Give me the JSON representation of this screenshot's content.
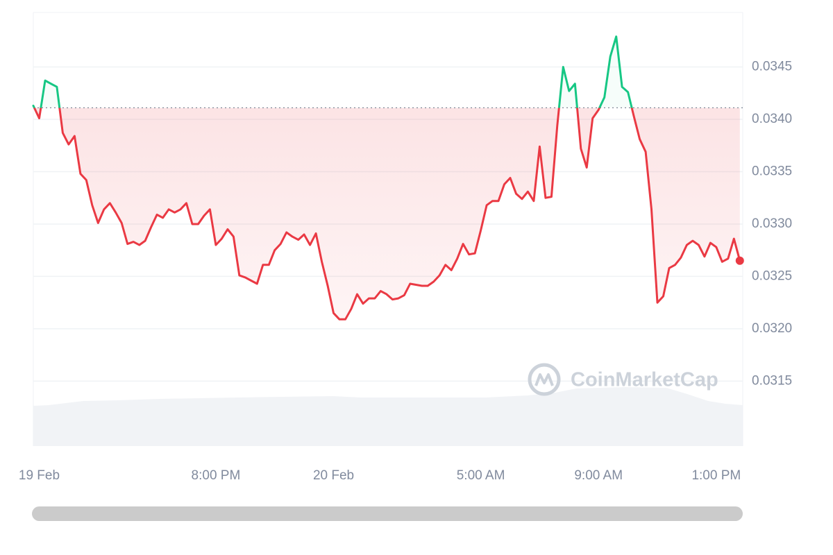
{
  "chart_data": {
    "type": "line",
    "watermark": "CoinMarketCap",
    "x": [
      13.8,
      14,
      14.2,
      14.4,
      14.6,
      14.8,
      15,
      15.2,
      15.4,
      15.6,
      15.8,
      16,
      16.2,
      16.4,
      16.6,
      16.8,
      17,
      17.2,
      17.4,
      17.6,
      17.8,
      18,
      18.2,
      18.4,
      18.6,
      18.8,
      19,
      19.2,
      19.4,
      19.6,
      19.8,
      20,
      20.2,
      20.4,
      20.6,
      20.8,
      21,
      21.2,
      21.4,
      21.6,
      21.8,
      22,
      22.2,
      22.4,
      22.6,
      22.8,
      23,
      23.2,
      23.4,
      23.6,
      23.8,
      24,
      24.2,
      24.4,
      24.6,
      24.8,
      25,
      25.2,
      25.4,
      25.6,
      25.8,
      26,
      26.2,
      26.4,
      26.6,
      26.8,
      27,
      27.2,
      27.4,
      27.6,
      27.8,
      28,
      28.2,
      28.4,
      28.6,
      28.8,
      29,
      29.2,
      29.4,
      29.6,
      29.8,
      30,
      30.2,
      30.4,
      30.6,
      30.8,
      31,
      31.2,
      31.4,
      31.6,
      31.8,
      32,
      32.2,
      32.4,
      32.6,
      32.8,
      33,
      33.2,
      33.4,
      33.6,
      33.8,
      34,
      34.2,
      34.4,
      34.6,
      34.8,
      35,
      35.2,
      35.4,
      35.6,
      35.8,
      36,
      36.2,
      36.4,
      36.6,
      36.8,
      37,
      37.2,
      37.4,
      37.6,
      37.8
    ],
    "series": [
      {
        "up_color": "#16c784",
        "color": "#ea3943",
        "values": [
          0.03413,
          0.03401,
          0.03437,
          0.03434,
          0.03431,
          0.03387,
          0.03376,
          0.03384,
          0.03348,
          0.03342,
          0.03318,
          0.03301,
          0.03314,
          0.0332,
          0.03311,
          0.03301,
          0.03281,
          0.03283,
          0.0328,
          0.03284,
          0.03297,
          0.03309,
          0.03306,
          0.03314,
          0.03311,
          0.03314,
          0.0332,
          0.033,
          0.033,
          0.03308,
          0.03314,
          0.0328,
          0.03286,
          0.03295,
          0.03288,
          0.03251,
          0.03249,
          0.03246,
          0.03243,
          0.03261,
          0.03261,
          0.03275,
          0.03281,
          0.03292,
          0.03288,
          0.03285,
          0.0329,
          0.0328,
          0.03291,
          0.03264,
          0.03241,
          0.03215,
          0.03209,
          0.03209,
          0.03219,
          0.03233,
          0.03224,
          0.03229,
          0.03229,
          0.03236,
          0.03233,
          0.03228,
          0.03229,
          0.03232,
          0.03243,
          0.03242,
          0.03241,
          0.03241,
          0.03245,
          0.03251,
          0.03261,
          0.03256,
          0.03267,
          0.03281,
          0.03271,
          0.03272,
          0.03294,
          0.03318,
          0.03322,
          0.03322,
          0.03338,
          0.03344,
          0.03329,
          0.03324,
          0.03331,
          0.03322,
          0.03374,
          0.03325,
          0.03326,
          0.03394,
          0.0345,
          0.03427,
          0.03434,
          0.03372,
          0.03354,
          0.03401,
          0.03409,
          0.03421,
          0.0346,
          0.03479,
          0.03431,
          0.03426,
          0.03403,
          0.03381,
          0.03369,
          0.03314,
          0.03225,
          0.03231,
          0.03258,
          0.03261,
          0.03268,
          0.0328,
          0.03284,
          0.0328,
          0.03269,
          0.03282,
          0.03278,
          0.03264,
          0.03267,
          0.03286,
          0.03265
        ]
      }
    ],
    "baseline": 0.03411,
    "xlim": [
      13.8,
      37.9
    ],
    "ylim": [
      0.03088,
      0.03502
    ],
    "xticks": [
      {
        "value": 14,
        "label": "19 Feb"
      },
      {
        "value": 20,
        "label": "8:00 PM"
      },
      {
        "value": 24,
        "label": "20 Feb"
      },
      {
        "value": 29,
        "label": "5:00 AM"
      },
      {
        "value": 33,
        "label": "9:00 AM"
      },
      {
        "value": 37,
        "label": "1:00 PM"
      }
    ],
    "yticks": [
      0.0315,
      {
        "value": 0.032,
        "label": "0.0320"
      },
      0.0325,
      {
        "value": 0.033,
        "label": "0.0330"
      },
      0.0335,
      {
        "value": 0.034,
        "label": "0.0340"
      },
      0.0345
    ],
    "grid": true
  }
}
